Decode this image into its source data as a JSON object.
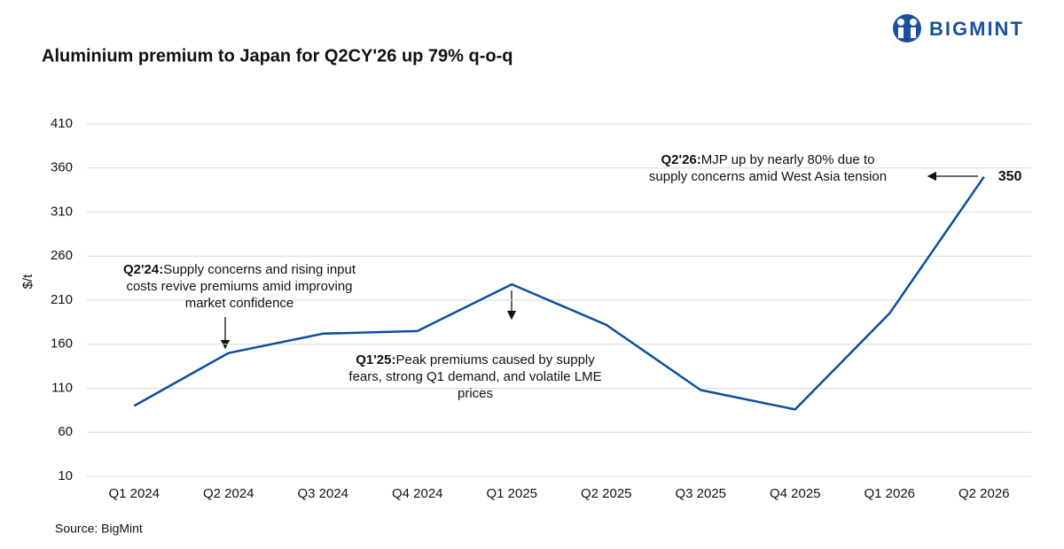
{
  "chart_data": {
    "type": "line",
    "title": "Aluminium premium to Japan for Q2CY'26 up 79% q-o-q",
    "logo": "BIGMINT",
    "y_label": "$/t",
    "source": "Source: BigMint",
    "categories": [
      "Q1 2024",
      "Q2 2024",
      "Q3 2024",
      "Q4 2024",
      "Q1 2025",
      "Q2 2025",
      "Q3 2025",
      "Q4 2025",
      "Q1 2026",
      "Q2 2026"
    ],
    "series": [
      {
        "name": "MJP",
        "color": "#0b4f9c",
        "values": [
          90,
          150,
          172,
          175,
          228,
          182,
          108,
          86,
          195,
          350
        ]
      }
    ],
    "ylim": [
      10,
      410
    ],
    "yticks": [
      10,
      60,
      110,
      160,
      210,
      260,
      310,
      360,
      410
    ],
    "grid": true,
    "annotations": [
      {
        "label": "Q2'24:",
        "lines": [
          "Supply concerns and rising input",
          "costs revive premiums amid improving",
          "market confidence"
        ]
      },
      {
        "label": "Q1'25:",
        "lines": [
          "Peak premiums caused by supply",
          "fears, strong Q1 demand, and volatile LME",
          "prices"
        ]
      },
      {
        "label": "Q2'26:",
        "lines": [
          "MJP up by nearly 80% due to",
          "supply concerns amid West Asia tension"
        ]
      }
    ]
  }
}
